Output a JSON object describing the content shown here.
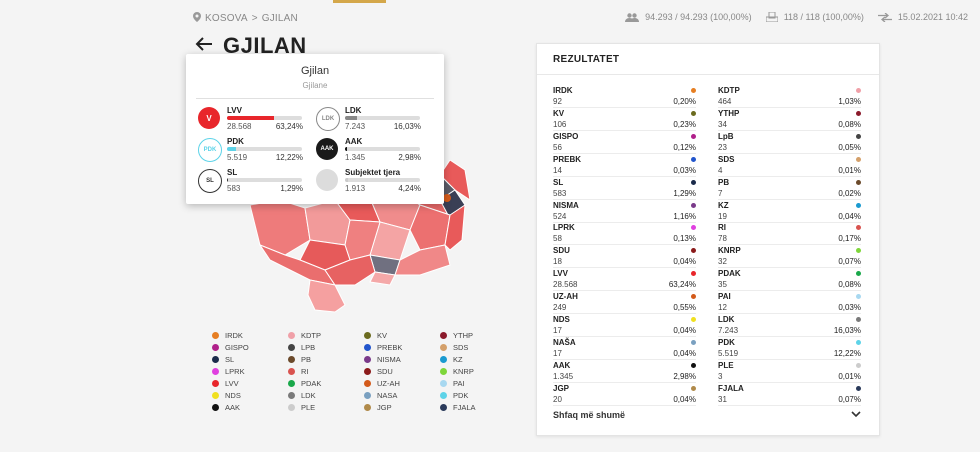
{
  "breadcrumb": {
    "region": "KOSOVA",
    "sep": ">",
    "city": "GJILAN"
  },
  "stats": {
    "voters": "94.293 / 94.293 (100,00%)",
    "stations": "118 / 118 (100,00%)",
    "updated": "15.02.2021 10:42"
  },
  "title": "GJILAN",
  "popup": {
    "title": "Gjilan",
    "subtitle": "Gjilane",
    "candidates": [
      {
        "name": "LVV",
        "votes": "28.568",
        "pct": "63,24%",
        "share": 0.6324,
        "color": "#e8262b",
        "logo": "V",
        "logo_bg": "#e8262b"
      },
      {
        "name": "LDK",
        "votes": "7.243",
        "pct": "16,03%",
        "share": 0.1603,
        "color": "#888888",
        "logo": "LDK",
        "logo_bg": "#ffffff"
      },
      {
        "name": "PDK",
        "votes": "5.519",
        "pct": "12,22%",
        "share": 0.1222,
        "color": "#5dd3e8",
        "logo": "PDK",
        "logo_bg": "#ffffff"
      },
      {
        "name": "AAK",
        "votes": "1.345",
        "pct": "2,98%",
        "share": 0.0298,
        "color": "#111111",
        "logo": "AAK",
        "logo_bg": "#1a1a1a"
      },
      {
        "name": "SL",
        "votes": "583",
        "pct": "1,29%",
        "share": 0.0129,
        "color": "#333333",
        "logo": "SL",
        "logo_bg": "#ffffff"
      },
      {
        "name": "Subjektet tjera",
        "votes": "1.913",
        "pct": "4,24%",
        "share": 0.0424,
        "color": "#cccccc",
        "logo": "",
        "logo_bg": "#dcdcdc"
      }
    ]
  },
  "legend": [
    {
      "name": "IRDK",
      "color": "#e67e22"
    },
    {
      "name": "KDTP",
      "color": "#f0a0a8"
    },
    {
      "name": "KV",
      "color": "#6b6b1f"
    },
    {
      "name": "YTHP",
      "color": "#8b1a2b"
    },
    {
      "name": "GISPO",
      "color": "#b0208a"
    },
    {
      "name": "LPB",
      "color": "#444444"
    },
    {
      "name": "PREBK",
      "color": "#2255cc"
    },
    {
      "name": "SDS",
      "color": "#d4a06a"
    },
    {
      "name": "SL",
      "color": "#1a2a4a"
    },
    {
      "name": "PB",
      "color": "#6b4a2b"
    },
    {
      "name": "NISMA",
      "color": "#7a3a8a"
    },
    {
      "name": "KZ",
      "color": "#1a9ad0"
    },
    {
      "name": "LPRK",
      "color": "#e040e0"
    },
    {
      "name": "RI",
      "color": "#d9534f"
    },
    {
      "name": "SDU",
      "color": "#8b1a1a"
    },
    {
      "name": "KNRP",
      "color": "#7ed63a"
    },
    {
      "name": "LVV",
      "color": "#e8262b"
    },
    {
      "name": "PDAK",
      "color": "#1aa84a"
    },
    {
      "name": "UZ-AH",
      "color": "#d35a1a"
    },
    {
      "name": "PAI",
      "color": "#a8d8f0"
    },
    {
      "name": "NDS",
      "color": "#f0e020"
    },
    {
      "name": "LDK",
      "color": "#7a7a7a"
    },
    {
      "name": "NASA",
      "color": "#7aa0c0"
    },
    {
      "name": "PDK",
      "color": "#5dd3e8"
    },
    {
      "name": "AAK",
      "color": "#111111"
    },
    {
      "name": "PLE",
      "color": "#cccccc"
    },
    {
      "name": "JGP",
      "color": "#b08a4a"
    },
    {
      "name": "FJALA",
      "color": "#2a3a5a"
    }
  ],
  "results": {
    "title": "REZULTATET",
    "more_label": "Shfaq më shumë",
    "left": [
      {
        "name": "IRDK",
        "votes": "92",
        "pct": "0,20%",
        "color": "#e67e22"
      },
      {
        "name": "KV",
        "votes": "106",
        "pct": "0,23%",
        "color": "#6b6b1f"
      },
      {
        "name": "GISPO",
        "votes": "56",
        "pct": "0,12%",
        "color": "#b0208a"
      },
      {
        "name": "PREBK",
        "votes": "14",
        "pct": "0,03%",
        "color": "#2255cc"
      },
      {
        "name": "SL",
        "votes": "583",
        "pct": "1,29%",
        "color": "#1a2a4a"
      },
      {
        "name": "NISMA",
        "votes": "524",
        "pct": "1,16%",
        "color": "#7a3a8a"
      },
      {
        "name": "LPRK",
        "votes": "58",
        "pct": "0,13%",
        "color": "#e040e0"
      },
      {
        "name": "SDU",
        "votes": "18",
        "pct": "0,04%",
        "color": "#8b1a1a"
      },
      {
        "name": "LVV",
        "votes": "28.568",
        "pct": "63,24%",
        "color": "#e8262b"
      },
      {
        "name": "UZ-AH",
        "votes": "249",
        "pct": "0,55%",
        "color": "#d35a1a"
      },
      {
        "name": "NDS",
        "votes": "17",
        "pct": "0,04%",
        "color": "#f0e020"
      },
      {
        "name": "NAŠA",
        "votes": "17",
        "pct": "0,04%",
        "color": "#7aa0c0"
      },
      {
        "name": "AAK",
        "votes": "1.345",
        "pct": "2,98%",
        "color": "#111111"
      },
      {
        "name": "JGP",
        "votes": "20",
        "pct": "0,04%",
        "color": "#b08a4a"
      }
    ],
    "right": [
      {
        "name": "KDTP",
        "votes": "464",
        "pct": "1,03%",
        "color": "#f0a0a8"
      },
      {
        "name": "YTHP",
        "votes": "34",
        "pct": "0,08%",
        "color": "#8b1a2b"
      },
      {
        "name": "LpB",
        "votes": "23",
        "pct": "0,05%",
        "color": "#444444"
      },
      {
        "name": "SDS",
        "votes": "4",
        "pct": "0,01%",
        "color": "#d4a06a"
      },
      {
        "name": "PB",
        "votes": "7",
        "pct": "0,02%",
        "color": "#6b4a2b"
      },
      {
        "name": "KZ",
        "votes": "19",
        "pct": "0,04%",
        "color": "#1a9ad0"
      },
      {
        "name": "RI",
        "votes": "78",
        "pct": "0,17%",
        "color": "#d9534f"
      },
      {
        "name": "KNRP",
        "votes": "32",
        "pct": "0,07%",
        "color": "#7ed63a"
      },
      {
        "name": "PDAK",
        "votes": "35",
        "pct": "0,08%",
        "color": "#1aa84a"
      },
      {
        "name": "PAI",
        "votes": "12",
        "pct": "0,03%",
        "color": "#a8d8f0"
      },
      {
        "name": "LDK",
        "votes": "7.243",
        "pct": "16,03%",
        "color": "#7a7a7a"
      },
      {
        "name": "PDK",
        "votes": "5.519",
        "pct": "12,22%",
        "color": "#5dd3e8"
      },
      {
        "name": "PLE",
        "votes": "3",
        "pct": "0,01%",
        "color": "#cccccc"
      },
      {
        "name": "FJALA",
        "votes": "31",
        "pct": "0,07%",
        "color": "#2a3a5a"
      }
    ]
  }
}
